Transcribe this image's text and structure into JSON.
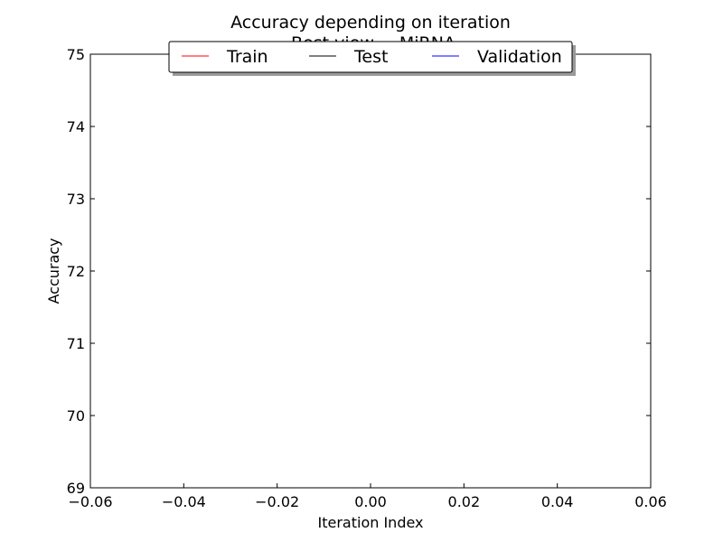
{
  "chart_data": {
    "type": "line",
    "title": "Accuracy depending on iteration",
    "subtitle": "Best view = MiRNA",
    "xlabel": "Iteration Index",
    "ylabel": "Accuracy",
    "xlim": [
      -0.06,
      0.06
    ],
    "ylim": [
      69,
      75
    ],
    "x_ticks": [
      -0.06,
      -0.04,
      -0.02,
      0.0,
      0.02,
      0.04,
      0.06
    ],
    "x_tick_labels": [
      "−0.06",
      "−0.04",
      "−0.02",
      "0.00",
      "0.02",
      "0.04",
      "0.06"
    ],
    "y_ticks": [
      69,
      70,
      71,
      72,
      73,
      74,
      75
    ],
    "y_tick_labels": [
      "69",
      "70",
      "71",
      "72",
      "73",
      "74",
      "75"
    ],
    "grid": false,
    "legend_position": "top-center",
    "series": [
      {
        "name": "Train",
        "color": "#ff0000",
        "x": [],
        "y": []
      },
      {
        "name": "Test",
        "color": "#000000",
        "x": [],
        "y": []
      },
      {
        "name": "Validation",
        "color": "#0000ff",
        "x": [],
        "y": []
      }
    ]
  }
}
